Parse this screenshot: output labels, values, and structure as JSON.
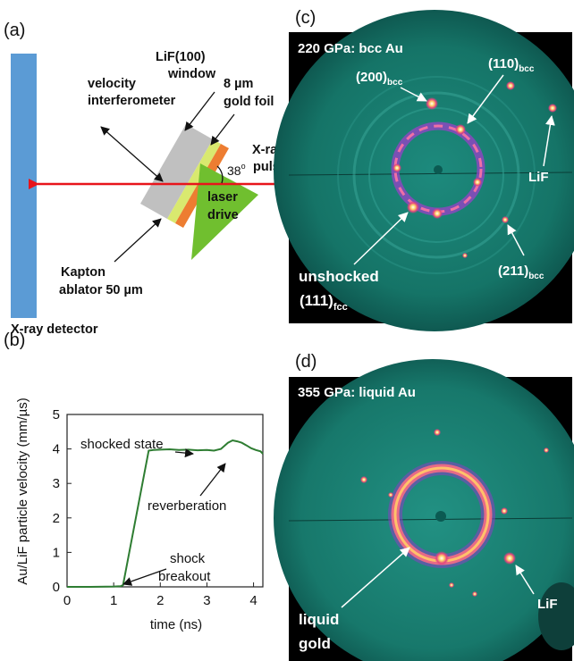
{
  "panel_a": {
    "label": "(a)",
    "velocity_interferometer": [
      "velocity",
      "interferometer"
    ],
    "lif_window": [
      "LiF(100)",
      "window"
    ],
    "gold_foil": [
      "8 µm",
      "gold foil"
    ],
    "xray_pulse": [
      "X-ray",
      "pulse"
    ],
    "angle": "38",
    "angle_unit": "o",
    "laser_drive": [
      "laser",
      "drive"
    ],
    "kapton": [
      "Kapton",
      "ablator 50 µm"
    ],
    "xray_detector": "X-ray detector",
    "colors": {
      "detector": "#5b9bd5",
      "window": "#c0c0c0",
      "foil": "#ed7d31",
      "kapton": "#d9e96f",
      "laser": "#70bf2f",
      "beam": "#e8141b"
    }
  },
  "panel_b": {
    "label": "(b)",
    "annotations": {
      "shocked_state": "shocked state",
      "reverberation": "reverberation",
      "shock_breakout": [
        "shock",
        "breakout"
      ]
    },
    "chart_data": {
      "type": "line",
      "xlabel": "time (ns)",
      "ylabel": "Au/LiF particle velocity (mm/µs)",
      "xlim": [
        0,
        4.2
      ],
      "ylim": [
        0,
        5
      ],
      "xticks": [
        0,
        1,
        2,
        3,
        4
      ],
      "yticks": [
        0,
        1,
        2,
        3,
        4,
        5
      ],
      "series": [
        {
          "color": "#2e7d32",
          "x": [
            0,
            0.5,
            1.0,
            1.15,
            1.2,
            1.75,
            1.85,
            2.0,
            2.2,
            2.4,
            2.6,
            2.8,
            3.0,
            3.15,
            3.3,
            3.45,
            3.55,
            3.65,
            3.75,
            3.85,
            3.95,
            4.05,
            4.15,
            4.2
          ],
          "y": [
            0,
            0,
            0.01,
            0.02,
            0.05,
            3.95,
            3.97,
            3.98,
            3.99,
            3.97,
            3.98,
            3.96,
            3.97,
            3.95,
            4.0,
            4.18,
            4.25,
            4.22,
            4.18,
            4.1,
            4.02,
            3.97,
            3.93,
            3.86
          ]
        }
      ]
    }
  },
  "panel_c": {
    "label": "(c)",
    "title": "220 GPa: bcc Au",
    "peaks": {
      "p200": {
        "main": "(200)",
        "sub": "bcc"
      },
      "p110": {
        "main": "(110)",
        "sub": "bcc"
      },
      "p211": {
        "main": "(211)",
        "sub": "bcc"
      },
      "lif": "LiF",
      "unshocked": "unshocked",
      "p111": {
        "main": "(111)",
        "sub": "fcc"
      }
    }
  },
  "panel_d": {
    "label": "(d)",
    "title": "355 GPa: liquid Au",
    "lif": "LiF",
    "liquid_gold": [
      "liquid",
      "gold"
    ]
  }
}
